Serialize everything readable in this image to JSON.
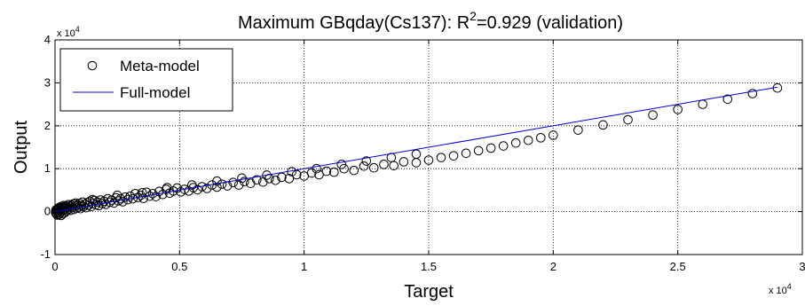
{
  "chart_data": {
    "type": "scatter",
    "title": {
      "prefix": "Maximum GBqday(Cs137): R",
      "superscript": "2",
      "suffix": "=0.929 (validation)"
    },
    "xlabel": "Target",
    "ylabel": "Output",
    "x_multiplier": "x 10",
    "x_multiplier_exp": "4",
    "y_multiplier": "x 10",
    "y_multiplier_exp": "4",
    "xlim": [
      0,
      3
    ],
    "ylim": [
      -1,
      4
    ],
    "xticks": [
      0,
      0.5,
      1,
      1.5,
      2,
      2.5,
      3
    ],
    "xtick_labels": [
      "0",
      "0.5",
      "1",
      "1.5",
      "2",
      "2.5",
      "3"
    ],
    "yticks": [
      -1,
      0,
      1,
      2,
      3,
      4
    ],
    "ytick_labels": [
      "-1",
      "0",
      "1",
      "2",
      "3",
      "4"
    ],
    "grid": true,
    "legend_position": "top-left",
    "series": [
      {
        "name": "Meta-model",
        "marker": "open-circle",
        "color": "#000000",
        "points": [
          [
            0.002,
            -0.02
          ],
          [
            0.003,
            0.03
          ],
          [
            0.005,
            -0.05
          ],
          [
            0.006,
            0.05
          ],
          [
            0.008,
            0.0
          ],
          [
            0.009,
            -0.08
          ],
          [
            0.011,
            0.07
          ],
          [
            0.012,
            -0.03
          ],
          [
            0.014,
            0.08
          ],
          [
            0.015,
            -0.07
          ],
          [
            0.017,
            0.02
          ],
          [
            0.018,
            0.1
          ],
          [
            0.02,
            -0.04
          ],
          [
            0.022,
            0.06
          ],
          [
            0.024,
            -0.09
          ],
          [
            0.026,
            0.12
          ],
          [
            0.028,
            0.01
          ],
          [
            0.03,
            0.09
          ],
          [
            0.032,
            -0.05
          ],
          [
            0.034,
            0.14
          ],
          [
            0.036,
            0.04
          ],
          [
            0.038,
            0.11
          ],
          [
            0.04,
            -0.02
          ],
          [
            0.042,
            0.07
          ],
          [
            0.045,
            0.13
          ],
          [
            0.048,
            0.02
          ],
          [
            0.05,
            0.1
          ],
          [
            0.053,
            0.16
          ],
          [
            0.056,
            0.06
          ],
          [
            0.06,
            0.12
          ],
          [
            0.063,
            0.03
          ],
          [
            0.066,
            0.15
          ],
          [
            0.07,
            0.09
          ],
          [
            0.073,
            0.18
          ],
          [
            0.076,
            0.05
          ],
          [
            0.08,
            0.13
          ],
          [
            0.083,
            0.2
          ],
          [
            0.087,
            0.08
          ],
          [
            0.09,
            0.15
          ],
          [
            0.094,
            0.1
          ],
          [
            0.098,
            0.19
          ],
          [
            0.102,
            0.07
          ],
          [
            0.106,
            0.14
          ],
          [
            0.11,
            0.22
          ],
          [
            0.115,
            0.12
          ],
          [
            0.12,
            0.17
          ],
          [
            0.125,
            0.09
          ],
          [
            0.13,
            0.21
          ],
          [
            0.135,
            0.15
          ],
          [
            0.14,
            0.24
          ],
          [
            0.146,
            0.12
          ],
          [
            0.152,
            0.19
          ],
          [
            0.158,
            0.26
          ],
          [
            0.164,
            0.16
          ],
          [
            0.17,
            0.22
          ],
          [
            0.176,
            0.14
          ],
          [
            0.183,
            0.27
          ],
          [
            0.19,
            0.19
          ],
          [
            0.197,
            0.24
          ],
          [
            0.204,
            0.17
          ],
          [
            0.212,
            0.3
          ],
          [
            0.22,
            0.22
          ],
          [
            0.228,
            0.27
          ],
          [
            0.236,
            0.2
          ],
          [
            0.245,
            0.32
          ],
          [
            0.254,
            0.25
          ],
          [
            0.263,
            0.3
          ],
          [
            0.272,
            0.23
          ],
          [
            0.282,
            0.34
          ],
          [
            0.292,
            0.28
          ],
          [
            0.302,
            0.36
          ],
          [
            0.312,
            0.3
          ],
          [
            0.322,
            0.42
          ],
          [
            0.333,
            0.33
          ],
          [
            0.344,
            0.38
          ],
          [
            0.355,
            0.31
          ],
          [
            0.367,
            0.45
          ],
          [
            0.38,
            0.36
          ],
          [
            0.392,
            0.42
          ],
          [
            0.405,
            0.35
          ],
          [
            0.418,
            0.47
          ],
          [
            0.432,
            0.4
          ],
          [
            0.446,
            0.52
          ],
          [
            0.46,
            0.43
          ],
          [
            0.475,
            0.48
          ],
          [
            0.49,
            0.55
          ],
          [
            0.505,
            0.46
          ],
          [
            0.52,
            0.52
          ],
          [
            0.537,
            0.48
          ],
          [
            0.555,
            0.56
          ],
          [
            0.572,
            0.51
          ],
          [
            0.59,
            0.58
          ],
          [
            0.61,
            0.54
          ],
          [
            0.63,
            0.62
          ],
          [
            0.65,
            0.57
          ],
          [
            0.67,
            0.64
          ],
          [
            0.692,
            0.6
          ],
          [
            0.715,
            0.68
          ],
          [
            0.738,
            0.62
          ],
          [
            0.76,
            0.7
          ],
          [
            0.785,
            0.66
          ],
          [
            0.81,
            0.74
          ],
          [
            0.835,
            0.69
          ],
          [
            0.86,
            0.77
          ],
          [
            0.885,
            0.73
          ],
          [
            0.91,
            0.8
          ],
          [
            0.94,
            0.77
          ],
          [
            0.97,
            0.86
          ],
          [
            1.0,
            0.83
          ],
          [
            1.03,
            0.9
          ],
          [
            1.06,
            0.86
          ],
          [
            1.09,
            0.94
          ],
          [
            1.12,
            0.92
          ],
          [
            1.16,
            1.0
          ],
          [
            1.2,
            0.96
          ],
          [
            1.24,
            1.06
          ],
          [
            1.28,
            1.02
          ],
          [
            1.32,
            1.1
          ],
          [
            1.36,
            1.07
          ],
          [
            1.4,
            1.16
          ],
          [
            1.45,
            1.14
          ],
          [
            1.5,
            1.2
          ],
          [
            1.55,
            1.26
          ],
          [
            1.6,
            1.3
          ],
          [
            1.65,
            1.36
          ],
          [
            1.7,
            1.42
          ],
          [
            1.75,
            1.48
          ],
          [
            1.8,
            1.53
          ],
          [
            1.85,
            1.6
          ],
          [
            1.9,
            1.66
          ],
          [
            1.95,
            1.72
          ],
          [
            2.0,
            1.78
          ],
          [
            2.1,
            1.9
          ],
          [
            2.2,
            2.02
          ],
          [
            2.3,
            2.14
          ],
          [
            2.4,
            2.25
          ],
          [
            2.5,
            2.38
          ],
          [
            2.6,
            2.5
          ],
          [
            2.7,
            2.62
          ],
          [
            2.8,
            2.75
          ],
          [
            2.9,
            2.88
          ],
          [
            0.15,
            0.28
          ],
          [
            0.25,
            0.38
          ],
          [
            0.35,
            0.44
          ],
          [
            0.45,
            0.56
          ],
          [
            0.55,
            0.62
          ],
          [
            0.65,
            0.71
          ],
          [
            0.75,
            0.78
          ],
          [
            0.85,
            0.85
          ],
          [
            0.95,
            0.93
          ],
          [
            1.05,
            1.0
          ],
          [
            1.15,
            1.1
          ],
          [
            1.25,
            1.18
          ],
          [
            1.35,
            1.26
          ],
          [
            1.45,
            1.34
          ]
        ]
      },
      {
        "name": "Full-model",
        "marker": "line",
        "color": "#0000cc",
        "points": [
          [
            0.0,
            0.0
          ],
          [
            2.9,
            2.9
          ]
        ]
      }
    ]
  }
}
